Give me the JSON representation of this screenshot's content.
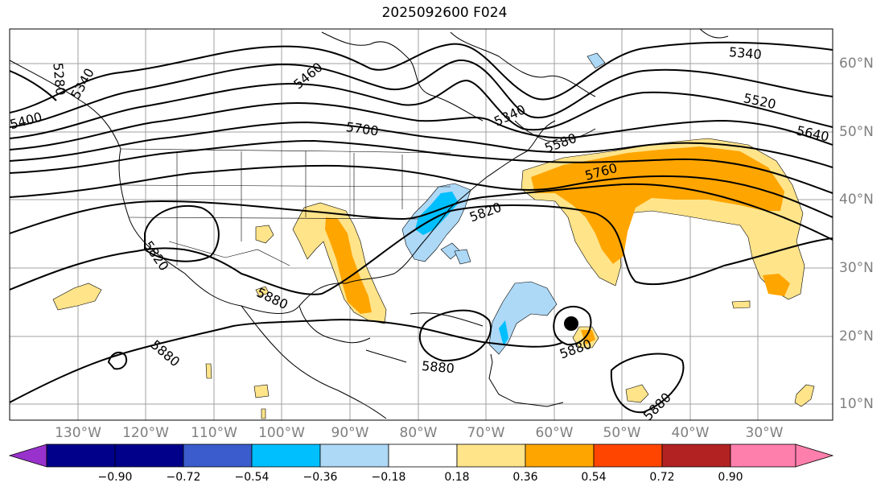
{
  "title": "2025092600 F024",
  "map": {
    "projection": "PlateCarree",
    "extent_lon": [
      -138,
      -17
    ],
    "extent_lat": [
      7.5,
      65
    ],
    "lon_labels": [
      "130°W",
      "120°W",
      "110°W",
      "100°W",
      "90°W",
      "80°W",
      "70°W",
      "60°W",
      "50°W",
      "40°W",
      "30°W"
    ],
    "lat_labels": [
      "60°N",
      "50°N",
      "40°N",
      "30°N",
      "20°N",
      "10°N"
    ],
    "label_color": "#7f7f7f",
    "contour_color": "#000000",
    "contour_labels": [
      "5460",
      "5340",
      "5520",
      "5640",
      "5700",
      "5580",
      "5340",
      "5400",
      "5280",
      "5340",
      "5760",
      "5820",
      "5820",
      "5880",
      "5880",
      "5880",
      "5880",
      "5880"
    ]
  },
  "colorbar": {
    "ticks": [
      "−0.90",
      "−0.72",
      "−0.54",
      "−0.36",
      "−0.18",
      "0.18",
      "0.36",
      "0.54",
      "0.72",
      "0.90"
    ],
    "colors": [
      "#9932cc",
      "#00008b",
      "#3a5ccc",
      "#00bfff",
      "#add8f6",
      "#ffffff",
      "#ffe48a",
      "#ffa500",
      "#ff4500",
      "#b22222",
      "#ff7fac"
    ]
  },
  "fill_colors": {
    "light_yellow": "#ffe48a",
    "orange": "#ffa500",
    "light_blue": "#add8f6",
    "blue": "#00bfff"
  },
  "marker": "storm-center-dot"
}
